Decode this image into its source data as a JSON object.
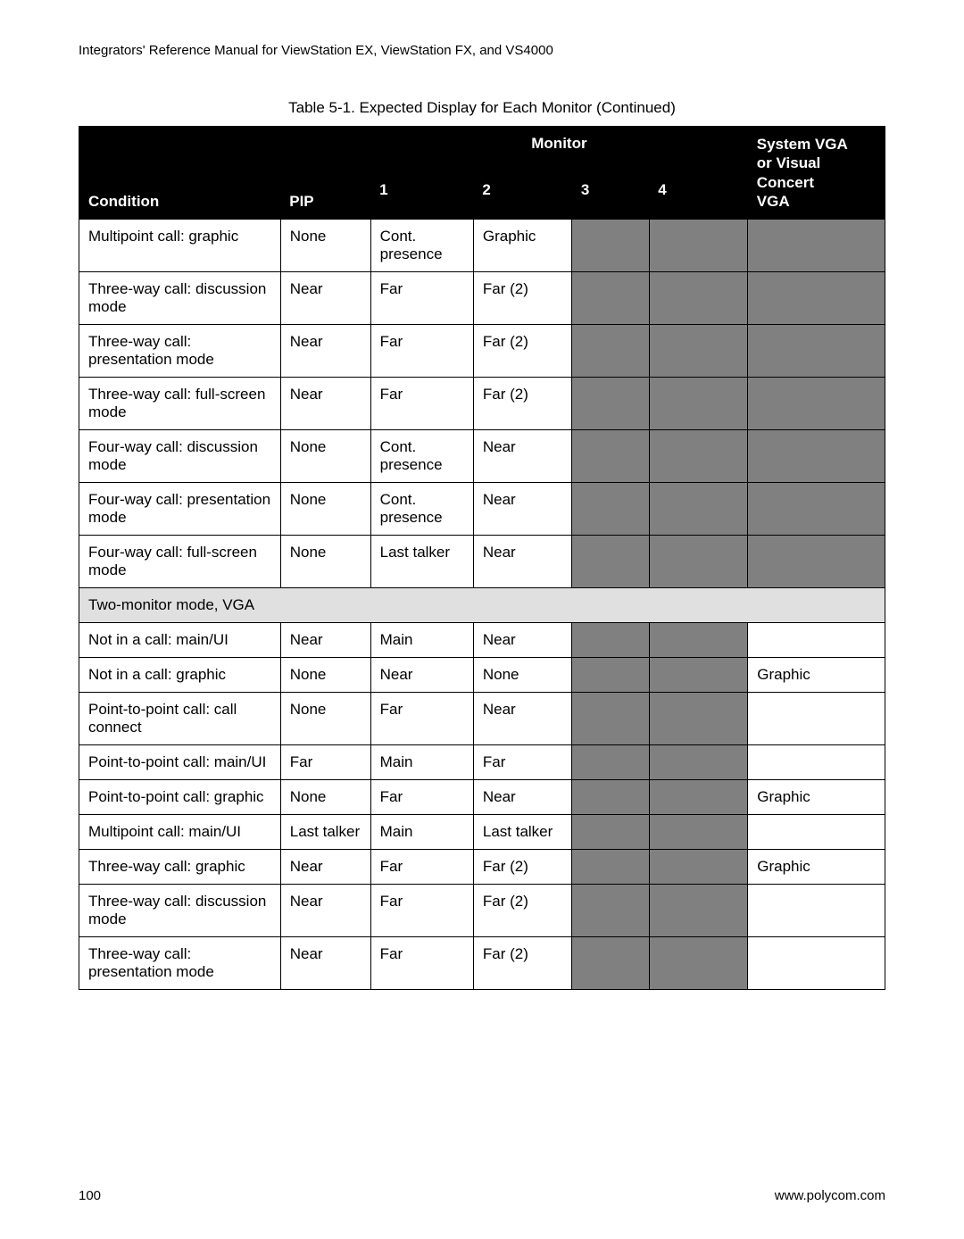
{
  "running_head": "Integrators' Reference Manual for ViewStation EX, ViewStation FX, and VS4000",
  "caption": "Table 5-1.  Expected Display for Each Monitor (Continued)",
  "header": {
    "monitor": "Monitor",
    "sysvga_l1": "System VGA",
    "sysvga_l2": "or Visual",
    "sysvga_l3": "Concert",
    "condition": "Condition",
    "pip": "PIP",
    "m1": "1",
    "m2": "2",
    "m3": "3",
    "m4": "4",
    "vga": "VGA"
  },
  "rows": [
    {
      "cond": "Multipoint call: graphic",
      "pip": "None",
      "m1": "Cont. presence",
      "m2": "Graphic",
      "m3": null,
      "m4": null,
      "vga": null
    },
    {
      "cond": "Three-way call: discussion mode",
      "pip": "Near",
      "m1": "Far",
      "m2": "Far (2)",
      "m3": null,
      "m4": null,
      "vga": null
    },
    {
      "cond": "Three-way call: presentation mode",
      "pip": "Near",
      "m1": "Far",
      "m2": "Far (2)",
      "m3": null,
      "m4": null,
      "vga": null
    },
    {
      "cond": "Three-way call: full-screen mode",
      "pip": "Near",
      "m1": "Far",
      "m2": "Far (2)",
      "m3": null,
      "m4": null,
      "vga": null
    },
    {
      "cond": "Four-way call: discussion mode",
      "pip": "None",
      "m1": "Cont. presence",
      "m2": "Near",
      "m3": null,
      "m4": null,
      "vga": null
    },
    {
      "cond": "Four-way call: presentation mode",
      "pip": "None",
      "m1": "Cont. presence",
      "m2": "Near",
      "m3": null,
      "m4": null,
      "vga": null
    },
    {
      "cond": "Four-way call: full-screen mode",
      "pip": "None",
      "m1": "Last talker",
      "m2": "Near",
      "m3": null,
      "m4": null,
      "vga": null
    }
  ],
  "section2_label": "Two-monitor mode, VGA",
  "rows2": [
    {
      "cond": "Not in a call: main/UI",
      "pip": "Near",
      "m1": "Main",
      "m2": "Near",
      "m3": null,
      "m4": null,
      "vga": ""
    },
    {
      "cond": "Not in a call: graphic",
      "pip": "None",
      "m1": "Near",
      "m2": "None",
      "m3": null,
      "m4": null,
      "vga": "Graphic"
    },
    {
      "cond": "Point-to-point call: call connect",
      "pip": "None",
      "m1": "Far",
      "m2": "Near",
      "m3": null,
      "m4": null,
      "vga": ""
    },
    {
      "cond": "Point-to-point call: main/UI",
      "pip": "Far",
      "m1": "Main",
      "m2": "Far",
      "m3": null,
      "m4": null,
      "vga": ""
    },
    {
      "cond": "Point-to-point call: graphic",
      "pip": "None",
      "m1": "Far",
      "m2": "Near",
      "m3": null,
      "m4": null,
      "vga": "Graphic"
    },
    {
      "cond": "Multipoint call: main/UI",
      "pip": "Last talker",
      "m1": "Main",
      "m2": "Last talker",
      "m3": null,
      "m4": null,
      "vga": ""
    },
    {
      "cond": "Three-way call: graphic",
      "pip": "Near",
      "m1": "Far",
      "m2": "Far (2)",
      "m3": null,
      "m4": null,
      "vga": "Graphic"
    },
    {
      "cond": "Three-way call: discussion mode",
      "pip": "Near",
      "m1": "Far",
      "m2": "Far (2)",
      "m3": null,
      "m4": null,
      "vga": ""
    },
    {
      "cond": "Three-way call: presentation mode",
      "pip": "Near",
      "m1": "Far",
      "m2": "Far (2)",
      "m3": null,
      "m4": null,
      "vga": ""
    }
  ],
  "footer": {
    "page": "100",
    "site": "www.polycom.com"
  },
  "style": {
    "dark_cell": "#808080",
    "section_bg": "#e0e0e0"
  }
}
